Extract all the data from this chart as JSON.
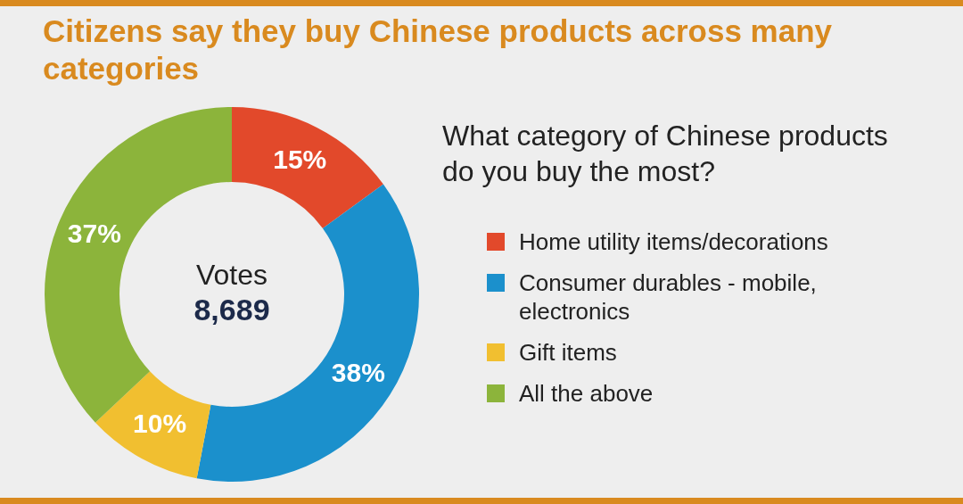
{
  "chart_data": {
    "type": "donut",
    "title": "Citizens say they buy Chinese products across many categories",
    "subtitle": "What category of Chinese products do you buy the most?",
    "categories": [
      "Home utility items/decorations",
      "Consumer durables - mobile, electronics",
      "Gift items",
      "All the above"
    ],
    "values": [
      15,
      38,
      10,
      37
    ],
    "colors": [
      "#e2492b",
      "#1b90cc",
      "#f1bf30",
      "#8cb43b"
    ],
    "value_labels": [
      "15%",
      "38%",
      "10%",
      "37%"
    ],
    "annotations": [
      "Votes",
      "8,689"
    ],
    "legend": "right"
  }
}
